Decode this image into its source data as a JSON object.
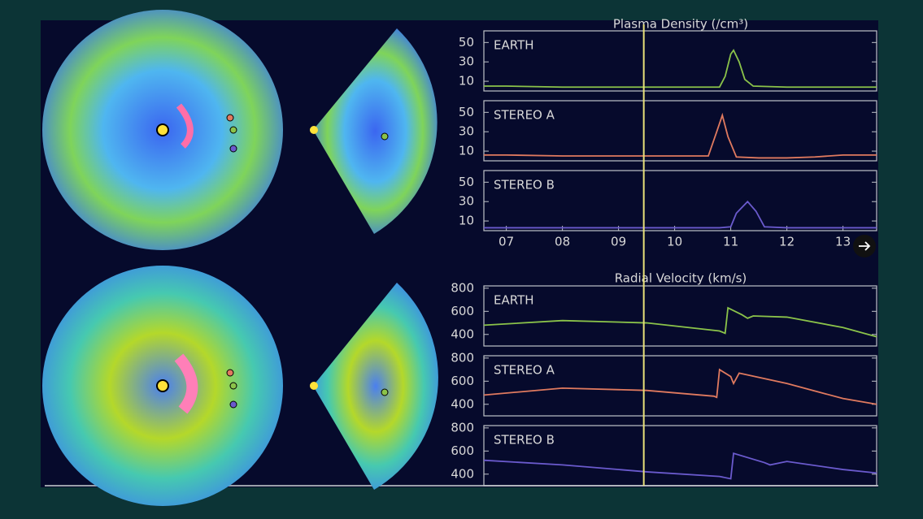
{
  "headings": [
    "Plasma Density (/cm³)",
    "Radial Velocity (km/s)"
  ],
  "marker_x": 9.45,
  "chart_data": [
    {
      "type": "line",
      "title": "EARTH",
      "xlim": [
        6.6,
        13.6
      ],
      "ylim": [
        0,
        62
      ],
      "yticks": [
        10,
        30,
        50
      ],
      "series": [
        {
          "color": "#8bc34a",
          "x": [
            6.6,
            7,
            8,
            9,
            10,
            10.8,
            10.9,
            11.0,
            11.05,
            11.15,
            11.25,
            11.4,
            12,
            13,
            13.6
          ],
          "values": [
            5,
            5,
            4,
            4,
            4,
            4,
            15,
            38,
            42,
            30,
            12,
            5,
            4,
            4,
            4
          ]
        }
      ]
    },
    {
      "type": "line",
      "title": "STEREO A",
      "xlim": [
        6.6,
        13.6
      ],
      "ylim": [
        0,
        62
      ],
      "yticks": [
        10,
        30,
        50
      ],
      "series": [
        {
          "color": "#e07a5f",
          "x": [
            6.6,
            7,
            8,
            9,
            10,
            10.6,
            10.75,
            10.85,
            10.95,
            11.1,
            11.5,
            12,
            12.5,
            13,
            13.6
          ],
          "values": [
            6,
            6,
            5,
            5,
            5,
            5,
            30,
            47,
            25,
            4,
            3,
            3,
            4,
            6,
            6
          ]
        }
      ]
    },
    {
      "type": "line",
      "title": "STEREO B",
      "xlim": [
        6.6,
        13.6
      ],
      "ylim": [
        0,
        62
      ],
      "yticks": [
        10,
        30,
        50
      ],
      "xticks": [
        {
          "value": 7,
          "label": "07"
        },
        {
          "value": 8,
          "label": "08"
        },
        {
          "value": 9,
          "label": "09"
        },
        10,
        11,
        12,
        13
      ],
      "series": [
        {
          "color": "#6a5acd",
          "x": [
            6.6,
            7,
            8,
            9,
            10,
            10.8,
            11.0,
            11.1,
            11.3,
            11.45,
            11.6,
            12,
            13,
            13.6
          ],
          "values": [
            3,
            3,
            3,
            3,
            3,
            3,
            4,
            18,
            30,
            20,
            4,
            3,
            3,
            3
          ]
        }
      ]
    },
    {
      "type": "line",
      "title": "EARTH",
      "xlim": [
        6.6,
        13.6
      ],
      "ylim": [
        300,
        820
      ],
      "yticks": [
        400,
        600,
        800
      ],
      "series": [
        {
          "color": "#8bc34a",
          "x": [
            6.6,
            8,
            9.5,
            10.8,
            10.9,
            10.95,
            11.2,
            11.3,
            11.4,
            12,
            13,
            13.6
          ],
          "values": [
            480,
            520,
            500,
            430,
            410,
            630,
            570,
            540,
            560,
            550,
            460,
            380
          ]
        }
      ]
    },
    {
      "type": "line",
      "title": "STEREO A",
      "xlim": [
        6.6,
        13.6
      ],
      "ylim": [
        300,
        820
      ],
      "yticks": [
        400,
        600,
        800
      ],
      "series": [
        {
          "color": "#e07a5f",
          "x": [
            6.6,
            8,
            9.5,
            10.7,
            10.75,
            10.8,
            11.0,
            11.05,
            11.15,
            12,
            13,
            13.6
          ],
          "values": [
            480,
            540,
            520,
            470,
            460,
            700,
            640,
            580,
            670,
            580,
            450,
            400
          ]
        }
      ]
    },
    {
      "type": "line",
      "title": "STEREO B",
      "xlim": [
        6.6,
        13.6
      ],
      "ylim": [
        300,
        820
      ],
      "yticks": [
        400,
        600,
        800
      ],
      "series": [
        {
          "color": "#6a5acd",
          "x": [
            6.6,
            8,
            9.5,
            10.8,
            11.0,
            11.05,
            11.6,
            11.7,
            12,
            13,
            13.6
          ],
          "values": [
            520,
            480,
            420,
            380,
            360,
            580,
            500,
            480,
            510,
            440,
            410
          ]
        }
      ]
    }
  ]
}
